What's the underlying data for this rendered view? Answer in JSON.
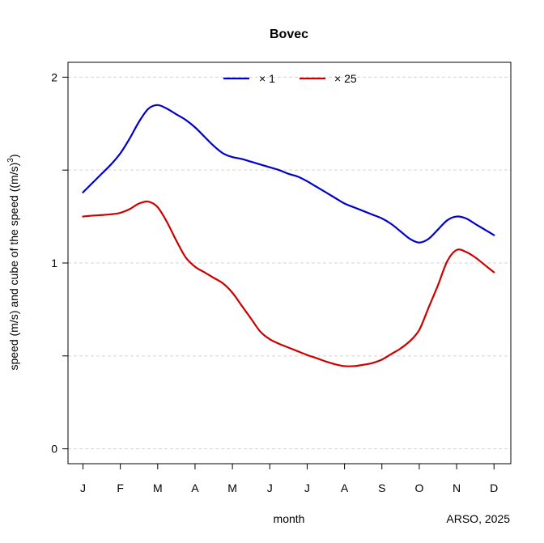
{
  "chart_data": {
    "type": "line",
    "title": "Bovec",
    "xlabel": "month",
    "ylabel_main": "speed (m/s) and cube of the speed ((m/s)",
    "ylabel_sup": "3",
    "ylabel_close": ")",
    "credit": "ARSO, 2025",
    "categories": [
      "J",
      "F",
      "M",
      "A",
      "M",
      "J",
      "J",
      "A",
      "S",
      "O",
      "N",
      "D"
    ],
    "y_ticks": [
      0,
      1,
      2
    ],
    "ylim": [
      -0.08,
      2.08
    ],
    "grid": "horizontal dashed",
    "legend_position": "top-center",
    "series": [
      {
        "name": "× 1",
        "color": "#0000cc",
        "x": [
          1,
          1.25,
          1.5,
          1.75,
          2,
          2.25,
          2.5,
          2.75,
          3,
          3.25,
          3.5,
          3.75,
          4,
          4.25,
          4.5,
          4.75,
          5,
          5.25,
          5.5,
          5.75,
          6,
          6.25,
          6.5,
          6.75,
          7,
          7.25,
          7.5,
          7.75,
          8,
          8.25,
          8.5,
          8.75,
          9,
          9.25,
          9.5,
          9.75,
          10,
          10.25,
          10.5,
          10.75,
          11,
          11.25,
          11.5,
          11.75,
          12
        ],
        "values": [
          1.38,
          1.43,
          1.48,
          1.53,
          1.59,
          1.67,
          1.76,
          1.83,
          1.85,
          1.83,
          1.8,
          1.77,
          1.73,
          1.68,
          1.63,
          1.59,
          1.57,
          1.56,
          1.545,
          1.53,
          1.515,
          1.5,
          1.48,
          1.465,
          1.44,
          1.41,
          1.38,
          1.35,
          1.32,
          1.3,
          1.28,
          1.26,
          1.24,
          1.21,
          1.17,
          1.13,
          1.11,
          1.13,
          1.18,
          1.23,
          1.25,
          1.24,
          1.21,
          1.18,
          1.15
        ]
      },
      {
        "name": "× 25",
        "color": "#cc0000",
        "x": [
          1,
          1.25,
          1.5,
          1.75,
          2,
          2.25,
          2.5,
          2.75,
          3,
          3.25,
          3.5,
          3.75,
          4,
          4.25,
          4.5,
          4.75,
          5,
          5.25,
          5.5,
          5.75,
          6,
          6.25,
          6.5,
          6.75,
          7,
          7.25,
          7.5,
          7.75,
          8,
          8.25,
          8.5,
          8.75,
          9,
          9.25,
          9.5,
          9.75,
          10,
          10.25,
          10.5,
          10.75,
          11,
          11.25,
          11.5,
          11.75,
          12
        ],
        "values": [
          1.25,
          1.255,
          1.258,
          1.262,
          1.27,
          1.29,
          1.32,
          1.33,
          1.3,
          1.22,
          1.12,
          1.03,
          0.98,
          0.95,
          0.92,
          0.89,
          0.84,
          0.77,
          0.7,
          0.63,
          0.59,
          0.565,
          0.545,
          0.525,
          0.505,
          0.488,
          0.47,
          0.455,
          0.445,
          0.445,
          0.452,
          0.462,
          0.48,
          0.51,
          0.54,
          0.58,
          0.64,
          0.76,
          0.88,
          1.01,
          1.07,
          1.06,
          1.03,
          0.99,
          0.95
        ]
      }
    ]
  }
}
